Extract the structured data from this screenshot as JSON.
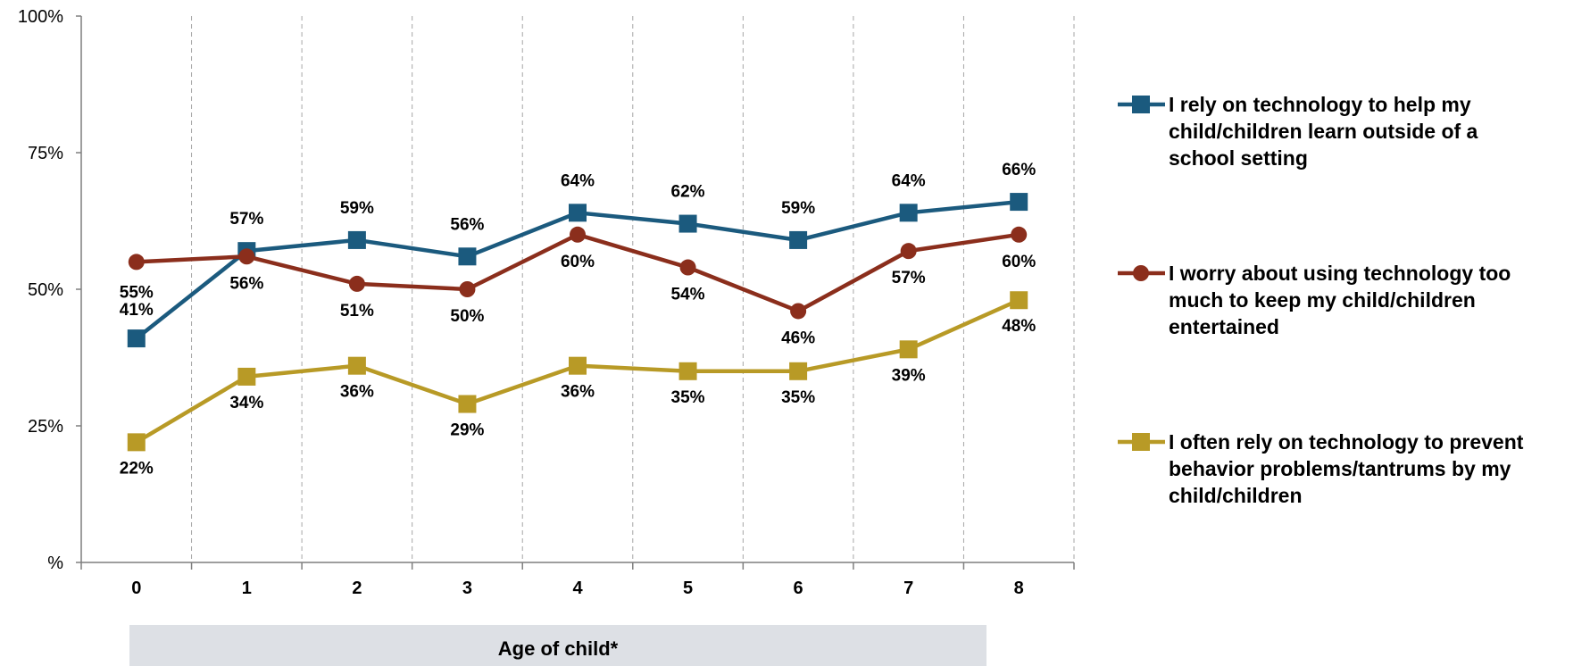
{
  "chart_data": {
    "type": "line",
    "xlabel": "Age of child*",
    "categories": [
      "0",
      "1",
      "2",
      "3",
      "4",
      "5",
      "6",
      "7",
      "8"
    ],
    "yticks": [
      "%",
      "25%",
      "50%",
      "75%",
      "100%"
    ],
    "ylim": [
      0,
      100
    ],
    "grid": "vertical dashed",
    "legend_position": "right",
    "series": [
      {
        "name": "I rely on technology to help my child/children learn outside of a school setting",
        "legend_lines": [
          "I rely on technology to help my",
          "child/children learn outside of a",
          "school setting"
        ],
        "color": "#1b5a7e",
        "marker": "square",
        "values": [
          41,
          57,
          59,
          56,
          64,
          62,
          59,
          64,
          66
        ],
        "labels": [
          "41%",
          "57%",
          "59%",
          "56%",
          "64%",
          "62%",
          "59%",
          "64%",
          "66%"
        ]
      },
      {
        "name": "I worry about using technology too much to keep my child/children entertained",
        "legend_lines": [
          "I worry about using technology too",
          "much to keep my child/children",
          "entertained"
        ],
        "color": "#8b2e1c",
        "marker": "circle",
        "values": [
          55,
          56,
          51,
          50,
          60,
          54,
          46,
          57,
          60
        ],
        "labels": [
          "55%",
          "56%",
          "51%",
          "50%",
          "60%",
          "54%",
          "46%",
          "57%",
          "60%"
        ]
      },
      {
        "name": "I often rely on technology to prevent behavior problems/tantrums by my child/children",
        "legend_lines": [
          "I often rely on technology to prevent",
          "behavior problems/tantrums by my",
          "child/children"
        ],
        "color": "#b89a26",
        "marker": "square",
        "values": [
          22,
          34,
          36,
          29,
          36,
          35,
          35,
          39,
          48
        ],
        "labels": [
          "22%",
          "34%",
          "36%",
          "29%",
          "36%",
          "35%",
          "35%",
          "39%",
          "48%"
        ]
      }
    ]
  }
}
